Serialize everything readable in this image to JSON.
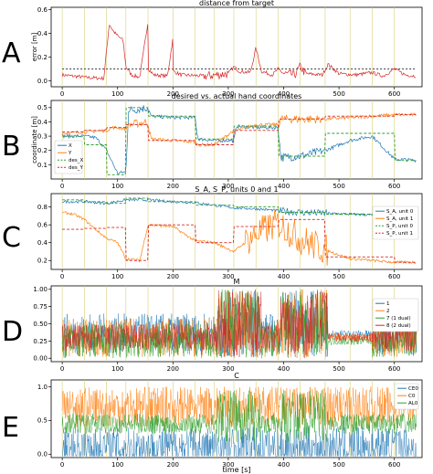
{
  "panel_labels": [
    "A",
    "B",
    "C",
    "D",
    "E"
  ],
  "x_axis": {
    "label": "time [s]",
    "ticks": [
      0,
      100,
      200,
      300,
      400,
      500,
      600
    ],
    "range": [
      -20,
      650
    ]
  },
  "colors": {
    "blue": "#1f77b4",
    "orange": "#ff7f0e",
    "green": "#2ca02c",
    "red": "#d62728",
    "black": "#000000",
    "yellow_marker": "#d8d07a"
  },
  "event_markers_s": [
    0,
    40,
    80,
    115,
    155,
    200,
    240,
    275,
    310,
    350,
    390,
    430,
    475,
    520,
    560,
    600
  ],
  "chart_data": [
    {
      "type": "line",
      "title": "distance from target",
      "ylabel": "error [m]",
      "ylim": [
        -0.05,
        0.62
      ],
      "yticks": [
        "0.0",
        "0.2",
        "0.4",
        "0.6"
      ],
      "threshold": 0.1,
      "series": [
        {
          "color": "red",
          "x": [
            0,
            40,
            75,
            85,
            92,
            100,
            110,
            115,
            125,
            140,
            155,
            156,
            165,
            190,
            200,
            201,
            215,
            260,
            300,
            310,
            320,
            340,
            350,
            360,
            380,
            390,
            400,
            420,
            430,
            440,
            470,
            480,
            500,
            530,
            560,
            580,
            600,
            620,
            640
          ],
          "y": [
            0.05,
            0.03,
            0.02,
            0.48,
            0.42,
            0.38,
            0.34,
            0.12,
            0.05,
            0.03,
            0.5,
            0.1,
            0.05,
            0.04,
            0.36,
            0.08,
            0.05,
            0.04,
            0.06,
            0.12,
            0.08,
            0.07,
            0.28,
            0.08,
            0.05,
            0.1,
            0.06,
            0.05,
            0.12,
            0.06,
            0.05,
            0.14,
            0.06,
            0.05,
            0.07,
            0.04,
            0.1,
            0.05,
            0.04
          ]
        }
      ]
    },
    {
      "type": "line",
      "title": "desired vs. actual hand coordinates",
      "ylabel": "coordinate [m]",
      "ylim": [
        0.0,
        0.55
      ],
      "yticks": [
        "0.1",
        "0.2",
        "0.3",
        "0.4",
        "0.5"
      ],
      "legend_position": "left",
      "series": [
        {
          "name": "X",
          "color": "blue",
          "x": [
            0,
            40,
            60,
            70,
            80,
            90,
            100,
            115,
            120,
            155,
            160,
            200,
            240,
            245,
            275,
            310,
            315,
            350,
            390,
            395,
            430,
            475,
            520,
            560,
            600,
            640
          ],
          "y": [
            0.3,
            0.3,
            0.29,
            0.25,
            0.2,
            0.12,
            0.04,
            0.05,
            0.48,
            0.5,
            0.44,
            0.43,
            0.43,
            0.28,
            0.27,
            0.27,
            0.37,
            0.36,
            0.36,
            0.15,
            0.16,
            0.2,
            0.27,
            0.3,
            0.14,
            0.13
          ]
        },
        {
          "name": "Y",
          "color": "orange",
          "x": [
            0,
            40,
            80,
            90,
            100,
            115,
            120,
            155,
            160,
            200,
            240,
            245,
            275,
            310,
            315,
            350,
            390,
            395,
            430,
            475,
            520,
            560,
            600,
            640
          ],
          "y": [
            0.32,
            0.33,
            0.34,
            0.36,
            0.36,
            0.35,
            0.38,
            0.4,
            0.28,
            0.27,
            0.26,
            0.24,
            0.24,
            0.34,
            0.34,
            0.38,
            0.38,
            0.42,
            0.42,
            0.42,
            0.43,
            0.44,
            0.45,
            0.45
          ]
        },
        {
          "name": "des_X",
          "color": "green",
          "x": [
            0,
            40,
            40,
            80,
            80,
            115,
            115,
            155,
            155,
            240,
            240,
            310,
            310,
            390,
            390,
            475,
            475,
            600,
            600,
            640
          ],
          "y": [
            0.3,
            0.3,
            0.24,
            0.24,
            0.03,
            0.03,
            0.5,
            0.5,
            0.44,
            0.44,
            0.28,
            0.28,
            0.37,
            0.37,
            0.16,
            0.16,
            0.32,
            0.32,
            0.13,
            0.13
          ]
        },
        {
          "name": "des_Y",
          "color": "red",
          "x": [
            0,
            40,
            40,
            80,
            80,
            115,
            115,
            155,
            155,
            240,
            240,
            310,
            310,
            390,
            390,
            475,
            475,
            600,
            600,
            640
          ],
          "y": [
            0.33,
            0.33,
            0.34,
            0.34,
            0.36,
            0.36,
            0.38,
            0.38,
            0.27,
            0.27,
            0.24,
            0.24,
            0.34,
            0.34,
            0.42,
            0.42,
            0.44,
            0.44,
            0.45,
            0.45
          ]
        }
      ]
    },
    {
      "type": "line",
      "title": "S_A, S_P, units 0 and 1",
      "ylabel": "",
      "ylim": [
        0.1,
        0.95
      ],
      "yticks": [
        "0.2",
        "0.4",
        "0.6",
        "0.8"
      ],
      "legend_position": "right",
      "series": [
        {
          "name": "S_A, unit 0",
          "color": "blue",
          "x": [
            0,
            40,
            80,
            115,
            155,
            200,
            240,
            275,
            310,
            350,
            390,
            430,
            475,
            520,
            560,
            600,
            640
          ],
          "y": [
            0.86,
            0.86,
            0.84,
            0.88,
            0.88,
            0.86,
            0.85,
            0.82,
            0.79,
            0.78,
            0.76,
            0.74,
            0.73,
            0.72,
            0.71,
            0.7,
            0.69
          ]
        },
        {
          "name": "S_A, unit 1",
          "color": "orange",
          "x": [
            0,
            20,
            40,
            60,
            80,
            100,
            115,
            140,
            155,
            200,
            240,
            275,
            310,
            350,
            390,
            430,
            475,
            520,
            560,
            600,
            640
          ],
          "y": [
            0.74,
            0.72,
            0.66,
            0.55,
            0.45,
            0.4,
            0.22,
            0.2,
            0.6,
            0.58,
            0.42,
            0.4,
            0.3,
            0.5,
            0.62,
            0.44,
            0.32,
            0.22,
            0.2,
            0.18,
            0.18
          ]
        },
        {
          "name": "S_P, unit 0",
          "color": "green",
          "x": [
            0,
            40,
            40,
            80,
            80,
            115,
            115,
            155,
            155,
            240,
            240,
            310,
            310,
            390,
            390,
            475,
            475,
            600,
            600,
            640
          ],
          "y": [
            0.88,
            0.88,
            0.86,
            0.86,
            0.84,
            0.84,
            0.9,
            0.9,
            0.86,
            0.86,
            0.82,
            0.82,
            0.8,
            0.8,
            0.74,
            0.74,
            0.72,
            0.72,
            0.7,
            0.7
          ]
        },
        {
          "name": "S_P, unit 1",
          "color": "red",
          "x": [
            0,
            40,
            40,
            80,
            80,
            115,
            115,
            155,
            155,
            240,
            240,
            310,
            310,
            390,
            390,
            475,
            475,
            600,
            600,
            640
          ],
          "y": [
            0.55,
            0.55,
            0.56,
            0.56,
            0.57,
            0.57,
            0.2,
            0.2,
            0.6,
            0.6,
            0.4,
            0.4,
            0.58,
            0.58,
            0.66,
            0.66,
            0.24,
            0.24,
            0.18,
            0.18
          ]
        }
      ]
    },
    {
      "type": "line",
      "title": "M",
      "ylabel": "",
      "ylim": [
        -0.05,
        1.05
      ],
      "yticks": [
        "0.00",
        "0.25",
        "0.50",
        "0.75",
        "1.00"
      ],
      "legend_position": "right",
      "series": [
        {
          "name": "1",
          "color": "blue",
          "base": 0.35,
          "noise": 0.3
        },
        {
          "name": "2",
          "color": "orange",
          "base": 0.3,
          "noise": 0.28
        },
        {
          "name": "7 (1 dual)",
          "color": "green",
          "base": 0.25,
          "noise": 0.25
        },
        {
          "name": "8 (2 dual)",
          "color": "red",
          "base": 0.3,
          "noise": 0.2
        }
      ]
    },
    {
      "type": "line",
      "title": "C",
      "ylabel": "",
      "ylim": [
        -0.05,
        1.1
      ],
      "yticks": [
        "0.0",
        "0.5",
        "1.0"
      ],
      "legend_position": "right",
      "series": [
        {
          "name": "CE0",
          "color": "blue",
          "base": 0.1,
          "noise": 0.3
        },
        {
          "name": "C0",
          "color": "orange",
          "base": 0.7,
          "noise": 0.3
        },
        {
          "name": "AL0",
          "color": "green",
          "base": 0.45,
          "noise": 0.15
        }
      ]
    }
  ]
}
